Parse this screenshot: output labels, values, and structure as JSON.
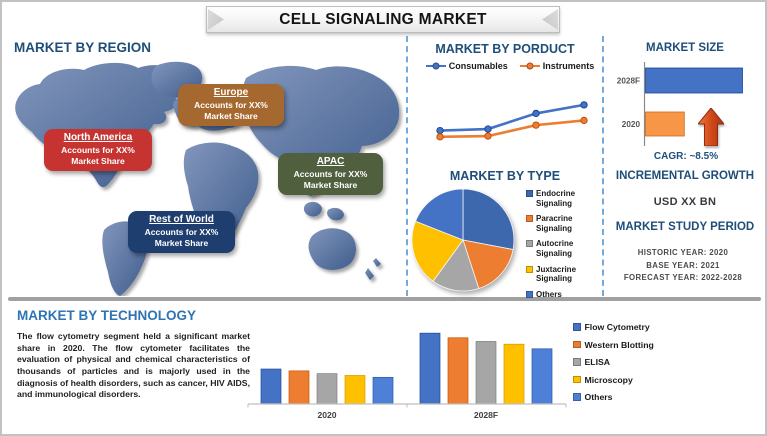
{
  "title": "CELL SIGNALING MARKET",
  "palette": {
    "heading_navy": "#1F4E79",
    "tech_heading_blue": "#2E74B5",
    "divider_blue": "#5B9BD5",
    "separator_gray": "#A0A0A0",
    "map_blue_light": "#8296BC",
    "map_blue_dark": "#3F5D8D",
    "arrow_red": "#C84318"
  },
  "region_section": {
    "heading": "MARKET BY REGION",
    "regions": [
      {
        "name": "North America",
        "line1": "Accounts for XX%",
        "line2": "Market Share",
        "color": "#C53431"
      },
      {
        "name": "Europe",
        "line1": "Accounts for XX%",
        "line2": "Market Share",
        "color": "#A5692F"
      },
      {
        "name": "APAC",
        "line1": "Accounts for XX%",
        "line2": "Market Share",
        "color": "#50603F"
      },
      {
        "name": "Rest of World",
        "line1": "Accounts for XX%",
        "line2": "Market Share",
        "color": "#1F3E70"
      }
    ]
  },
  "product_section": {
    "heading": "MARKET BY PORDUCT"
  },
  "type_section": {
    "heading": "MARKET BY TYPE"
  },
  "market_size_section": {
    "heading": "MARKET SIZE",
    "cagr_label": "CAGR: ~8.5%"
  },
  "incremental_section": {
    "heading": "INCREMENTAL GROWTH",
    "value": "USD XX BN"
  },
  "study_period_section": {
    "heading": "MARKET STUDY PERIOD",
    "items": [
      "HISTORIC YEAR: 2020",
      "BASE YEAR: 2021",
      "FORECAST YEAR: 2022-2028"
    ]
  },
  "technology_section": {
    "heading": "MARKET BY TECHNOLOGY",
    "paragraph": "The flow cytometry segment held a significant market share in 2020. The flow cytometer facilitates the evaluation of physical and chemical characteristics of thousands of particles and is majorly used in the diagnosis of health disorders, such as cancer, HIV AIDS, and immunological disorders."
  },
  "chart_data": [
    {
      "id": "product_line",
      "type": "line",
      "title": "MARKET BY PORDUCT",
      "x": [
        1,
        2,
        3,
        4
      ],
      "series": [
        {
          "name": "Consumables",
          "color": "#4472C4",
          "values": [
            30,
            32,
            52,
            63
          ]
        },
        {
          "name": "Instruments",
          "color": "#ED7D31",
          "values": [
            22,
            23,
            37,
            43
          ]
        }
      ],
      "ylim": [
        0,
        100
      ],
      "grid": false,
      "legend_position": "top"
    },
    {
      "id": "type_pie",
      "type": "pie",
      "title": "MARKET BY TYPE",
      "labels": [
        "Endocrine Signaling",
        "Paracrine Signaling",
        "Autocrine Signaling",
        "Juxtacrine Signaling",
        "Others"
      ],
      "values": [
        28,
        17,
        15,
        21,
        19
      ],
      "colors": [
        "#3E68AE",
        "#ED7D31",
        "#A6A6A6",
        "#FFC000",
        "#4472C4"
      ],
      "start_at_12_oclock": true,
      "clockwise": true,
      "legend_position": "right"
    },
    {
      "id": "market_size_bars",
      "type": "bar",
      "orientation": "horizontal",
      "title": "MARKET SIZE",
      "categories": [
        "2028F",
        "2020"
      ],
      "values": [
        10,
        4
      ],
      "colors": [
        "#4472C4",
        "#F79646"
      ],
      "xlim": [
        0,
        12
      ],
      "annotation": "CAGR: ~8.5%"
    },
    {
      "id": "technology_bars",
      "type": "bar",
      "title": "MARKET BY TECHNOLOGY",
      "categories": [
        "2020",
        "2028F"
      ],
      "series": [
        {
          "name": "Flow Cytometry",
          "color": "#4472C4",
          "values": [
            3.8,
            7.7
          ]
        },
        {
          "name": "Western Blotting",
          "color": "#ED7D31",
          "values": [
            3.6,
            7.2
          ]
        },
        {
          "name": "ELISA",
          "color": "#A6A6A6",
          "values": [
            3.3,
            6.8
          ]
        },
        {
          "name": "Microscopy",
          "color": "#FFC000",
          "values": [
            3.1,
            6.5
          ]
        },
        {
          "name": "Others",
          "color": "#4E80D8",
          "values": [
            2.9,
            6.0
          ]
        }
      ],
      "ylim": [
        0,
        10
      ],
      "grid": false,
      "legend_position": "right"
    }
  ]
}
